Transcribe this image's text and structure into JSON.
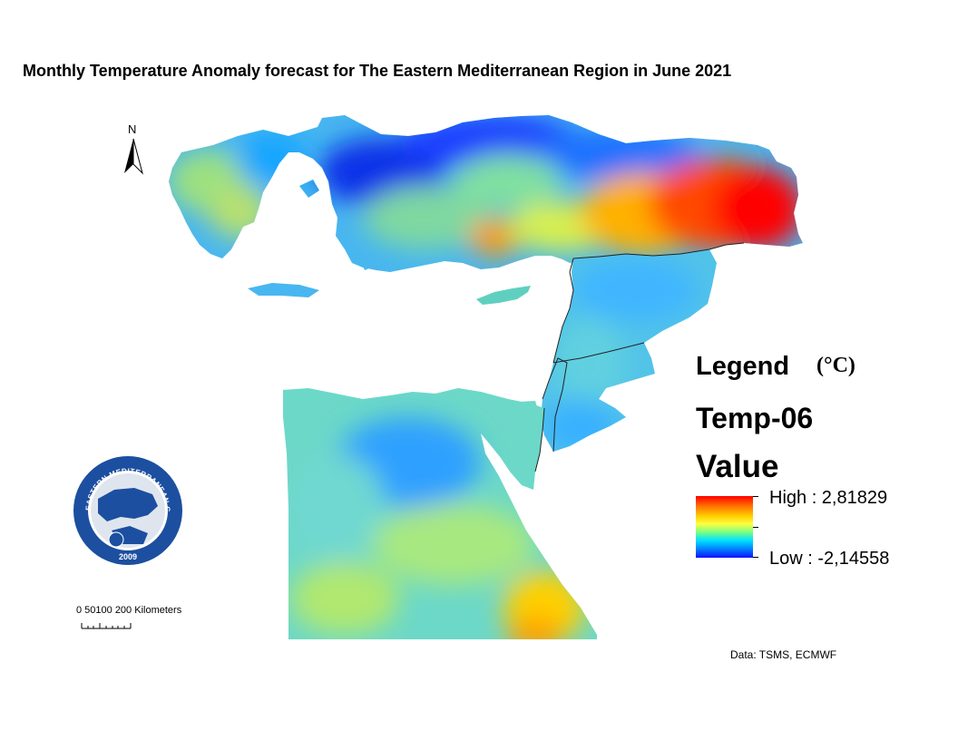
{
  "title": "Monthly Temperature Anomaly forecast for The Eastern Mediterranean Region in June 2021",
  "north_arrow": {
    "label": "N"
  },
  "legend": {
    "title": "Legend",
    "unit": "(°C)",
    "layer": "Temp-06",
    "field": "Value",
    "high_label": "High : 2,81829",
    "low_label": "Low : -2,14558",
    "high_value": 2.81829,
    "low_value": -2.14558,
    "colors": [
      "#ff0000",
      "#ff6a00",
      "#ffcc00",
      "#ffff40",
      "#80ff80",
      "#00e0ff",
      "#0080ff",
      "#1010ff"
    ]
  },
  "scale_bar": {
    "label": "0 50100 200 Kilometers"
  },
  "logo": {
    "text": "EASTERN MEDITERRANEAN CLIMATE CENTRE",
    "year": "2009",
    "ring_color": "#1c4fa0"
  },
  "credit": "Data:  TSMS, ECMWF"
}
